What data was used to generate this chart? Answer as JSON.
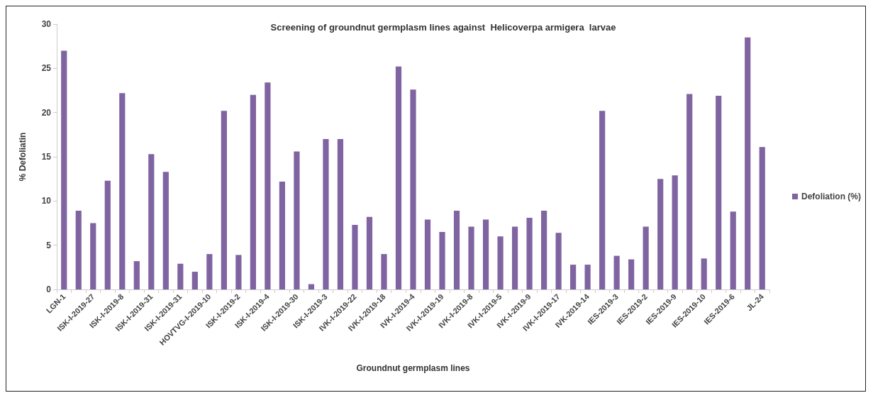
{
  "chart_data": {
    "type": "bar",
    "title": "Screening of groundnut germplasm lines against  Helicoverpa armigera  larvae",
    "xlabel": "Groundnut germplasm lines",
    "ylabel": "% Defoliatin",
    "categories": [
      "LGN-1",
      null,
      "ISK-I-2019-27",
      null,
      "ISK-I-2019-8",
      null,
      "ISK-I-2019-31",
      null,
      "ISK-I-2019-31",
      null,
      "HOVTVG-I-2019-10",
      null,
      "ISK-I-2019-2",
      null,
      "ISK-I-2019-4",
      null,
      "ISK-I-2019-30",
      null,
      "ISK-I-2019-3",
      null,
      "IVK-I-2019-22",
      null,
      "IVK-I-2019-18",
      null,
      "IVK-I-2019-4",
      null,
      "IVK-I-2019-19",
      null,
      "IVK-I-2019-8",
      null,
      "IVK-I-2019-5",
      null,
      "IVK-I-2019-9",
      null,
      "IVK-I-2019-17",
      null,
      "IVK-2019-14",
      null,
      "IES-2019-3",
      null,
      "IES-2019-2",
      null,
      "IES-2019-9",
      null,
      "IES-2019-10",
      null,
      "IES-2019-6",
      null,
      "JL-24"
    ],
    "series": [
      {
        "name": "Defoliation (%)",
        "color": "#8064a2",
        "values": [
          27.0,
          8.9,
          7.5,
          12.3,
          22.2,
          3.2,
          15.3,
          13.3,
          2.9,
          2.0,
          4.0,
          20.2,
          3.9,
          22.0,
          23.4,
          12.2,
          15.6,
          0.6,
          17.0,
          17.0,
          7.3,
          8.2,
          4.0,
          25.2,
          22.6,
          7.9,
          6.5,
          8.9,
          7.1,
          7.9,
          6.0,
          7.1,
          8.1,
          8.9,
          6.4,
          2.8,
          2.8,
          20.2,
          3.8,
          3.4,
          7.1,
          12.5,
          12.9,
          22.1,
          3.5,
          21.9,
          8.8,
          28.5,
          16.1
        ]
      }
    ],
    "ylim": [
      0,
      30
    ],
    "yticks": [
      0,
      5,
      10,
      15,
      20,
      25,
      30
    ],
    "grid": false,
    "legend": "right"
  }
}
